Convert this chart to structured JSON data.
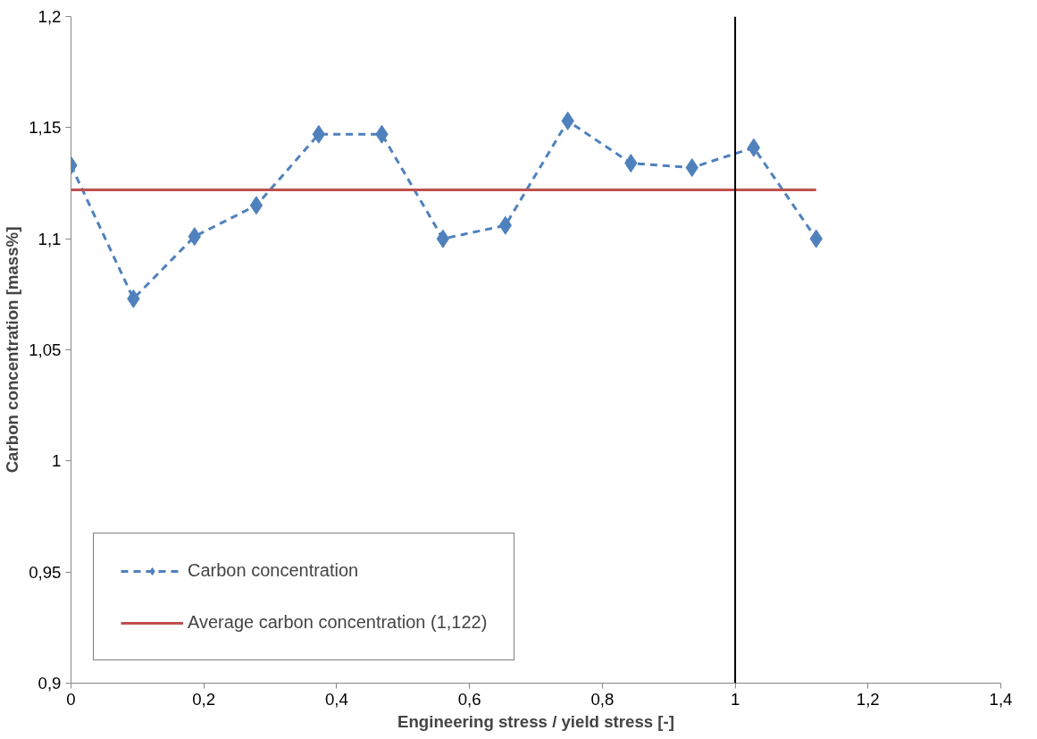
{
  "chart_data": {
    "type": "line",
    "xlabel": "Engineering stress / yield stress [-]",
    "ylabel": "Carbon concentration [mass%]",
    "x": [
      0,
      0.094,
      0.186,
      0.279,
      0.373,
      0.468,
      0.56,
      0.654,
      0.748,
      0.843,
      0.935,
      1.028,
      1.122
    ],
    "series": [
      {
        "name": "Carbon concentration",
        "color": "#4f81bd",
        "marker": "diamond",
        "line_style": "dashed",
        "values": [
          1.133,
          1.073,
          1.101,
          1.115,
          1.147,
          1.147,
          1.1,
          1.106,
          1.153,
          1.134,
          1.132,
          1.141,
          1.1
        ]
      },
      {
        "name": "Average carbon concentration (1,122)",
        "color": "#c0504d",
        "marker": "none",
        "line_style": "solid",
        "x": [
          0,
          1.122
        ],
        "values": [
          1.122,
          1.122
        ]
      }
    ],
    "ref_lines": [
      {
        "axis": "x",
        "value": 1,
        "color": "#000000"
      }
    ],
    "xlim": [
      0,
      1.4
    ],
    "ylim": [
      0.9,
      1.2
    ],
    "xticks": [
      0,
      {
        "value": 0.2,
        "label": "0,2"
      },
      {
        "value": 0.4,
        "label": "0,4"
      },
      {
        "value": 0.6,
        "label": "0,6"
      },
      {
        "value": 0.8,
        "label": "0,8"
      },
      1,
      {
        "value": 1.2,
        "label": "1,2"
      },
      {
        "value": 1.4,
        "label": "1,4"
      }
    ],
    "yticks": [
      {
        "value": 0.9,
        "label": "0,9"
      },
      {
        "value": 0.95,
        "label": "0,95"
      },
      1,
      {
        "value": 1.05,
        "label": "1,05"
      },
      {
        "value": 1.1,
        "label": "1,1"
      },
      {
        "value": 1.15,
        "label": "1,15"
      },
      {
        "value": 1.2,
        "label": "1,2"
      }
    ],
    "grid": false,
    "legend": "bottom left"
  }
}
